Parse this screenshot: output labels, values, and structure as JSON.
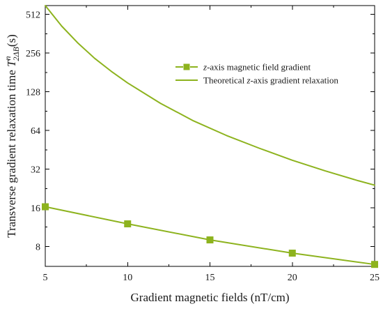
{
  "chart_data": {
    "type": "line",
    "xlabel": "Gradient magnetic fields (nT/cm)",
    "ylabel_prefix": "Transverse gradient relaxation time ",
    "ylabel_symbol": "T",
    "ylabel_superscript": "n",
    "ylabel_subscript": "2ΔB",
    "ylabel_unit": "(s)",
    "xlim": [
      5,
      25
    ],
    "ylim": [
      5.6,
      600
    ],
    "yscale": "log2",
    "xticks": [
      5,
      10,
      15,
      20,
      25
    ],
    "yticks": [
      8,
      16,
      32,
      64,
      128,
      256,
      512
    ],
    "grid": false,
    "legend_position": "top-right",
    "series": [
      {
        "name_parts": [
          {
            "text": "z",
            "italic": true
          },
          {
            "text": "-axis magnetic field gradient",
            "italic": false
          }
        ],
        "marker": "square",
        "dashed": true,
        "color": "#8db31e",
        "x": [
          5,
          10,
          15,
          20,
          25
        ],
        "y": [
          16.3,
          12.0,
          9.0,
          7.1,
          5.8
        ]
      },
      {
        "name_parts": [
          {
            "text": "Theoretical ",
            "italic": false
          },
          {
            "text": "z",
            "italic": true
          },
          {
            "text": "-axis gradient relaxation",
            "italic": false
          }
        ],
        "marker": "none",
        "dashed": false,
        "color": "#8db31e",
        "x": [
          5,
          6,
          7,
          8,
          9,
          10,
          12,
          14,
          16,
          18,
          20,
          22,
          24,
          25
        ],
        "y": [
          600,
          415,
          305,
          233,
          185,
          150,
          104,
          76,
          58.5,
          46.5,
          37.5,
          31,
          26,
          24
        ]
      }
    ]
  }
}
